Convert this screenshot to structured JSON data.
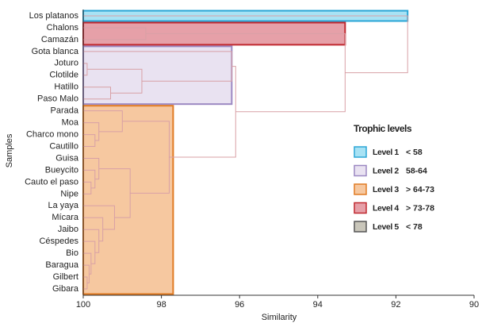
{
  "chart_data": {
    "type": "dendrogram",
    "xlabel": "Similarity",
    "ylabel": "Samples",
    "xlim": [
      100,
      90
    ],
    "xticks": [
      100,
      98,
      96,
      94,
      92,
      90
    ],
    "categories": [
      "Los platanos",
      "Chalons",
      "Camazán",
      "Gota blanca",
      "Joturo",
      "Clotilde",
      "Hatillo",
      "Paso Malo",
      "Parada",
      "Moa",
      "Charco mono",
      "Cautillo",
      "Guisa",
      "Bueycito",
      "Cauto el paso",
      "Nipe",
      "La yaya",
      "Mícara",
      "Jaibo",
      "Céspedes",
      "Bio",
      "Baragua",
      "Gilbert",
      "Gibara"
    ],
    "link_color": "#d8a0a6",
    "legend_title": "Trophic levels",
    "series": [
      {
        "name": "Level 1",
        "range": "< 58",
        "color": "#a8e2f4",
        "stroke": "#2aa6d6",
        "value": 91.7,
        "members": [
          "Los platanos"
        ]
      },
      {
        "name": "Level 2",
        "range": "58-64",
        "color": "#e9e2f1",
        "stroke": "#9c88c2",
        "value": 96.2,
        "members": [
          "Gota blanca",
          "Joturo",
          "Clotilde",
          "Hatillo",
          "Paso Malo"
        ]
      },
      {
        "name": "Level 3",
        "range": "> 64-73",
        "color": "#f6c8a0",
        "stroke": "#e07a22",
        "value": 97.7,
        "members": [
          "Parada",
          "Moa",
          "Charco mono",
          "Cautillo",
          "Guisa",
          "Bueycito",
          "Cauto el paso",
          "Nipe",
          "La yaya",
          "Mícara",
          "Jaibo",
          "Céspedes",
          "Bio",
          "Baragua",
          "Gilbert",
          "Gibara"
        ]
      },
      {
        "name": "Level 4",
        "range": "> 73-78",
        "color": "#e6a0a8",
        "stroke": "#c0282f",
        "value": 93.3,
        "members": [
          "Chalons",
          "Camazán"
        ]
      },
      {
        "name": "Level 5",
        "range": "< 78",
        "color": "#c9c6ba",
        "stroke": "#555555",
        "value": null,
        "members": []
      }
    ],
    "tree": {
      "similarity": 91.7,
      "children": [
        "Los platanos",
        {
          "similarity": 93.3,
          "children": [
            {
              "similarity": 98.4,
              "children": [
                "Chalons",
                "Camazán"
              ]
            },
            {
              "similarity": 96.1,
              "children": [
                {
                  "similarity": 96.2,
                  "children": [
                    "Gota blanca",
                    {
                      "similarity": 98.5,
                      "children": [
                        {
                          "similarity": 99.9,
                          "children": [
                            "Joturo",
                            "Clotilde"
                          ]
                        },
                        {
                          "similarity": 99.3,
                          "children": [
                            "Hatillo",
                            "Paso Malo"
                          ]
                        }
                      ]
                    }
                  ]
                },
                {
                  "similarity": 97.8,
                  "children": [
                    {
                      "similarity": 99.0,
                      "children": [
                        "Parada",
                        {
                          "similarity": 99.6,
                          "children": [
                            "Moa",
                            {
                              "similarity": 99.7,
                              "children": [
                                "Charco mono",
                                "Cautillo"
                              ]
                            }
                          ]
                        }
                      ]
                    },
                    {
                      "similarity": 98.8,
                      "children": [
                        {
                          "similarity": 99.6,
                          "children": [
                            "Guisa",
                            {
                              "similarity": 99.7,
                              "children": [
                                "Bueycito",
                                {
                                  "similarity": 99.8,
                                  "children": [
                                    "Cauto el paso",
                                    "Nipe"
                                  ]
                                }
                              ]
                            }
                          ]
                        },
                        {
                          "similarity": 99.2,
                          "children": [
                            "La yaya",
                            {
                              "similarity": 99.5,
                              "children": [
                                "Mícara",
                                {
                                  "similarity": 99.6,
                                  "children": [
                                    "Jaibo",
                                    {
                                      "similarity": 99.7,
                                      "children": [
                                        "Céspedes",
                                        {
                                          "similarity": 99.8,
                                          "children": [
                                            "Bio",
                                            {
                                              "similarity": 99.85,
                                              "children": [
                                                "Baragua",
                                                {
                                                  "similarity": 99.9,
                                                  "children": [
                                                    "Gilbert",
                                                    "Gibara"
                                                  ]
                                                }
                                              ]
                                            }
                                          ]
                                        }
                                      ]
                                    }
                                  ]
                                }
                              ]
                            }
                          ]
                        }
                      ]
                    }
                  ]
                }
              ]
            }
          ]
        }
      ]
    }
  }
}
